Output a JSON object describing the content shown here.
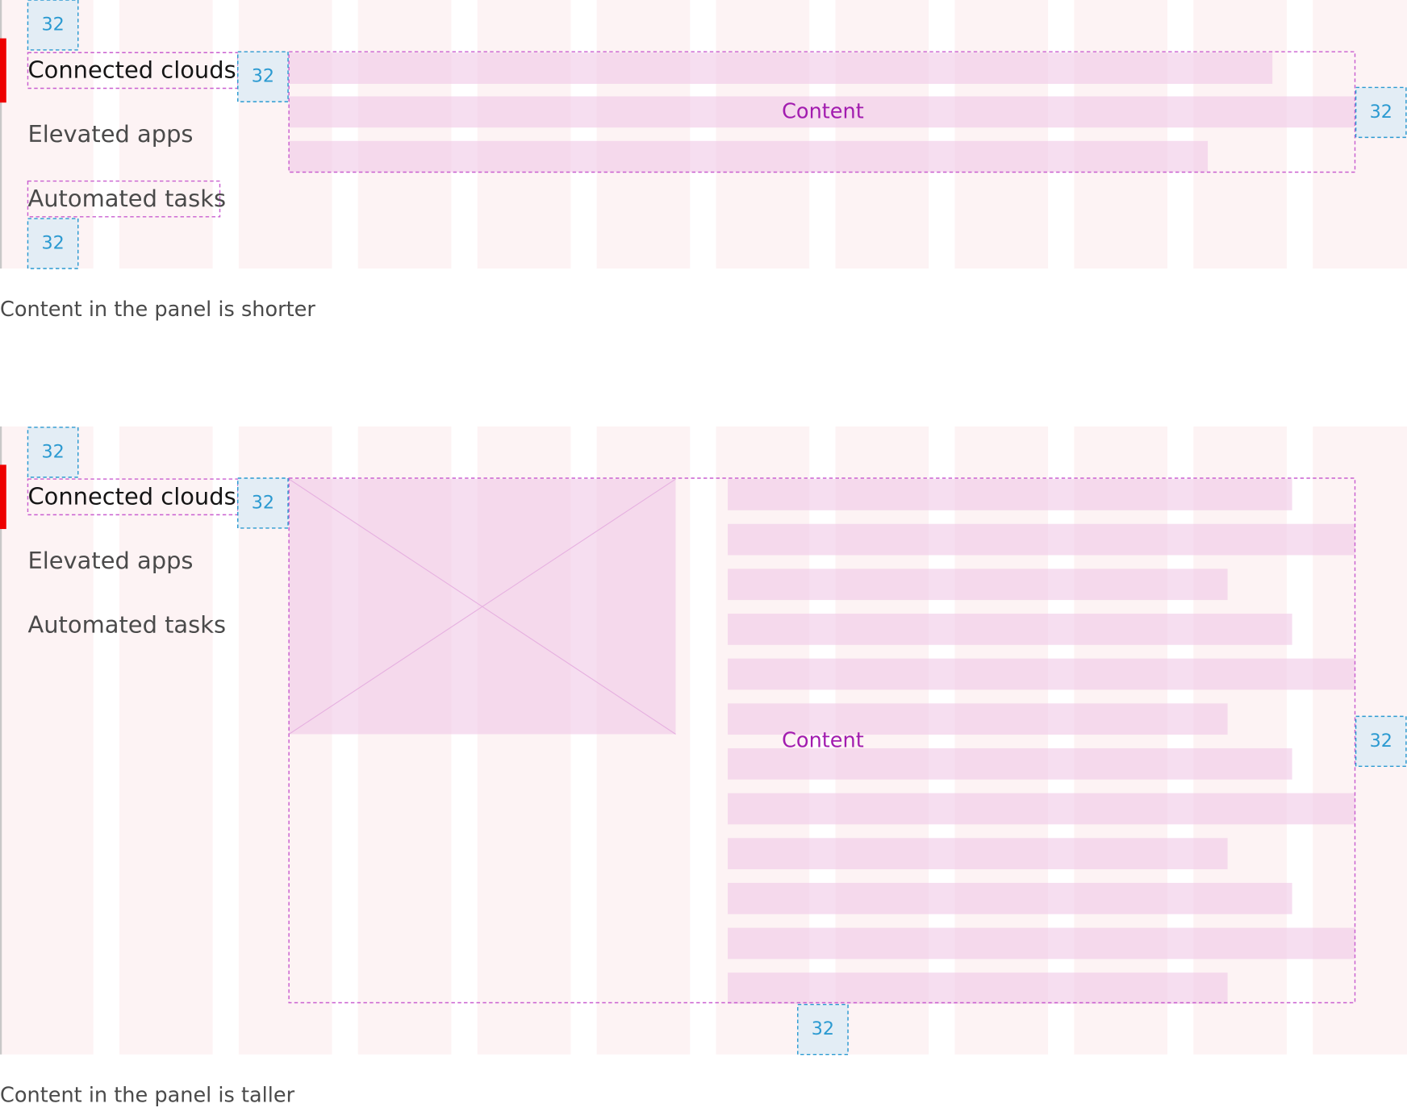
{
  "panels": [
    {
      "nav": [
        "Connected clouds",
        "Elevated apps",
        "Automated tasks"
      ],
      "spacers": [
        "32",
        "32",
        "32",
        "32"
      ],
      "content_label": "Content",
      "caption": "Content in the panel is shorter"
    },
    {
      "nav": [
        "Connected clouds",
        "Elevated apps",
        "Automated tasks"
      ],
      "spacers": [
        "32",
        "32",
        "32",
        "32"
      ],
      "content_label": "Content",
      "caption": "Content in the panel is taller"
    }
  ]
}
